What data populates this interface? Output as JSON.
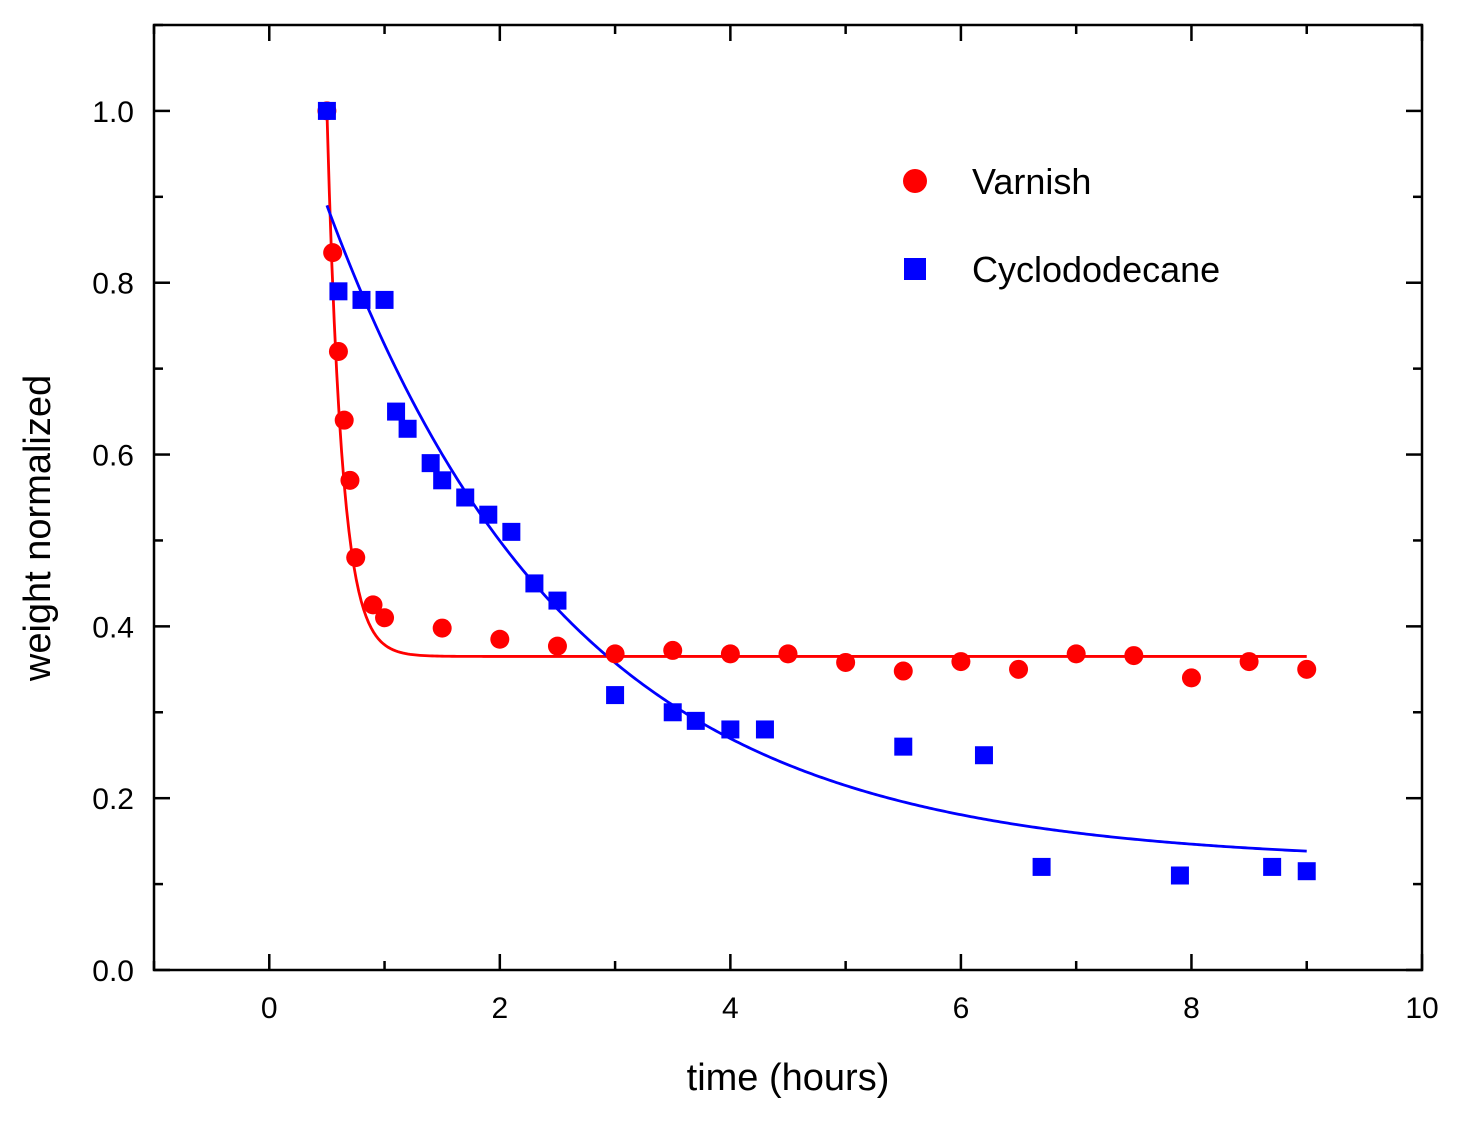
{
  "chart_data": {
    "type": "scatter",
    "title": "",
    "xlabel": "time (hours)",
    "ylabel": "weight normalized",
    "xlim": [
      -1,
      10
    ],
    "ylim": [
      0,
      1.1
    ],
    "xticks": [
      0,
      2,
      4,
      6,
      8,
      10
    ],
    "xtick_labels": [
      "0",
      "2",
      "4",
      "6",
      "8",
      "10"
    ],
    "yticks": [
      0.0,
      0.2,
      0.4,
      0.6,
      0.8,
      1.0
    ],
    "ytick_labels": [
      "0.0",
      "0.2",
      "0.4",
      "0.6",
      "0.8",
      "1.0"
    ],
    "grid": false,
    "legend_position": "top-right",
    "series": [
      {
        "name": "Varnish",
        "color": "#ff0000",
        "marker": "circle",
        "x": [
          0.5,
          0.55,
          0.6,
          0.65,
          0.7,
          0.75,
          0.9,
          1.0,
          1.5,
          2.0,
          2.5,
          3.0,
          3.5,
          4.0,
          4.5,
          5.0,
          5.5,
          6.0,
          6.5,
          7.0,
          7.5,
          8.0,
          8.5,
          9.0
        ],
        "y": [
          1.0,
          0.835,
          0.72,
          0.64,
          0.57,
          0.48,
          0.425,
          0.41,
          0.398,
          0.385,
          0.377,
          0.368,
          0.372,
          0.368,
          0.368,
          0.358,
          0.348,
          0.359,
          0.35,
          0.368,
          0.366,
          0.34,
          0.359,
          0.35
        ],
        "fit": {
          "model": "exponential",
          "y0": 0.365,
          "A": 0.635,
          "x0": 0.5,
          "tau": 0.13,
          "x_range": [
            0.5,
            9.0
          ]
        }
      },
      {
        "name": "Cyclododecane",
        "color": "#0000ff",
        "marker": "square",
        "x": [
          0.5,
          0.6,
          0.8,
          1.0,
          1.1,
          1.2,
          1.4,
          1.5,
          1.7,
          1.9,
          2.1,
          2.3,
          2.5,
          3.0,
          3.5,
          3.7,
          4.0,
          4.3,
          5.5,
          6.2,
          6.7,
          7.9,
          8.7,
          9.0
        ],
        "y": [
          1.0,
          0.79,
          0.78,
          0.78,
          0.65,
          0.63,
          0.59,
          0.57,
          0.55,
          0.53,
          0.51,
          0.45,
          0.43,
          0.32,
          0.3,
          0.29,
          0.28,
          0.28,
          0.26,
          0.25,
          0.12,
          0.11,
          0.12,
          0.115
        ],
        "fit": {
          "model": "exponential",
          "y0": 0.125,
          "A": 0.765,
          "x0": 0.5,
          "tau": 2.1,
          "x_range": [
            0.5,
            9.0
          ]
        }
      }
    ]
  }
}
